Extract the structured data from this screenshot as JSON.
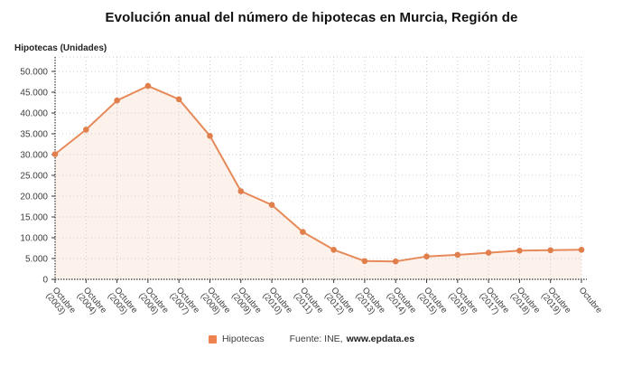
{
  "title": "Evolución anual del número de hipotecas en Murcia, Región de",
  "y_axis_title": "Hipotecas (Unidades)",
  "chart_data": {
    "type": "line",
    "title": "Evolución anual del número de hipotecas en Murcia, Región de",
    "ylabel": "Hipotecas (Unidades)",
    "xlabel": "",
    "categories": [
      "Octubre (2003)",
      "Octubre (2004)",
      "Octubre (2005)",
      "Octubre (2006)",
      "Octubre (2007)",
      "Octubre (2008)",
      "Octubre (2009)",
      "Octubre (2010)",
      "Octubre (2011)",
      "Octubre (2012)",
      "Octubre (2013)",
      "Octubre (2014)",
      "Octubre (2015)",
      "Octubre (2016)",
      "Octubre (2017)",
      "Octubre (2018)",
      "Octubre (2019)",
      "Octubre"
    ],
    "series": [
      {
        "name": "Hipotecas",
        "values": [
          30100,
          36000,
          43000,
          46500,
          43300,
          34500,
          21200,
          17900,
          11400,
          7100,
          4400,
          4300,
          5500,
          5900,
          6400,
          6900,
          7000,
          7100
        ]
      }
    ],
    "ylim": [
      0,
      50000
    ],
    "ytick_step": 5000,
    "ytick_labels": [
      "0",
      "5.000",
      "10.000",
      "15.000",
      "20.000",
      "25.000",
      "30.000",
      "35.000",
      "40.000",
      "45.000",
      "50.000"
    ],
    "grid": true,
    "area_fill": true,
    "marker": "circle",
    "legend_position": "bottom",
    "x_label_rotation_deg": 50
  },
  "source": {
    "prefix": "Fuente: INE,",
    "site": "www.epdata.es"
  },
  "colors": {
    "line": "#e78a5a",
    "marker": "#e07e4c",
    "area_fill": "rgba(231,138,90,0.12)",
    "legend_swatch": "#ef8350",
    "grid": "#cccccc",
    "axis": "#333333",
    "tick_text": "#3c3c3c",
    "title_text": "#111111"
  }
}
